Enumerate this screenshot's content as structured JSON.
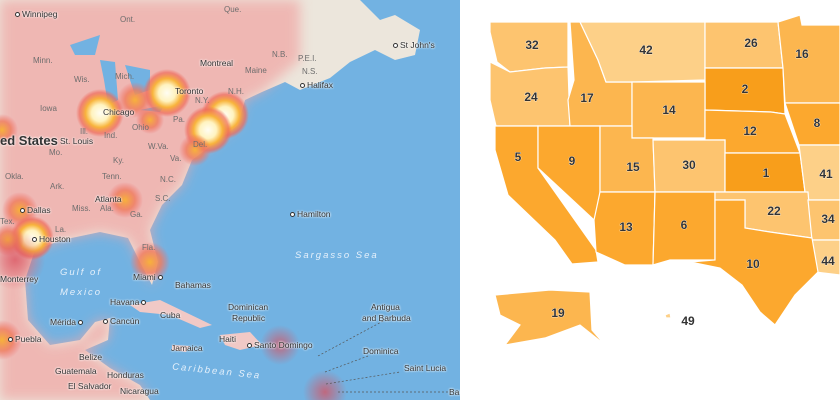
{
  "heatmap": {
    "cities": {
      "winnipeg": "Winnipeg",
      "montreal": "Montreal",
      "toronto": "Toronto",
      "chicago": "Chicago",
      "st_louis": "St. Louis",
      "halifax": "Halifax",
      "st_johns": "St John's",
      "atlanta": "Atlanta",
      "dallas": "Dallas",
      "houston": "Houston",
      "miami": "Miami",
      "hamilton": "Hamilton",
      "monterrey": "Monterrey",
      "havana": "Havana",
      "cancun": "Cancún",
      "merida": "Mérida",
      "puebla": "Puebla",
      "santo_domingo": "Santo Domingo"
    },
    "regions": {
      "que": "Que.",
      "ont": "Ont.",
      "minn": "Minn.",
      "wis": "Wis.",
      "mich": "Mich.",
      "iowa": "Iowa",
      "ill": "Ill.",
      "ind": "Ind.",
      "ohio": "Ohio",
      "pa": "Pa.",
      "ny": "N.Y.",
      "nh": "N.H.",
      "maine": "Maine",
      "nb": "N.B.",
      "pei": "P.E.I.",
      "ns": "N.S.",
      "mo": "Mo.",
      "ky": "Ky.",
      "wva": "W.Va.",
      "va": "Va.",
      "tenn": "Tenn.",
      "nc": "N.C.",
      "okla": "Okla.",
      "ark": "Ark.",
      "miss": "Miss.",
      "ala": "Ala.",
      "ga": "Ga.",
      "la": "La.",
      "fla": "Fla.",
      "sc": "S.C.",
      "del": "Del.",
      "tex": "Tex."
    },
    "countries": {
      "us": "ed States",
      "bahamas": "Bahamas",
      "cuba": "Cuba",
      "dominican_republic_1": "Dominican",
      "dominican_republic_2": "Republic",
      "haiti": "Haiti",
      "jamaica": "Jamaica",
      "belize": "Belize",
      "guatemala": "Guatemala",
      "honduras": "Honduras",
      "el_salvador": "El Salvador",
      "nicaragua": "Nicaragua",
      "antigua_1": "Antigua",
      "antigua_2": "and Barbuda",
      "dominica": "Dominica",
      "saint_lucia": "Saint Lucia",
      "barbados": "Bar"
    },
    "seas": {
      "gulf_1": "Gulf of",
      "gulf_2": "Mexico",
      "sargasso": "Sargasso Sea",
      "caribbean": "Caribbean Sea"
    },
    "colors": {
      "ocean": "#72b2e2",
      "land": "#ece6dc",
      "heat_low": "#f2a0a0",
      "heat_mid": "#f7b23b",
      "heat_high": "#fffbe8"
    }
  },
  "choropleth": {
    "color_scale": {
      "1-4": "#f89e1b",
      "5-13": "#fca82e",
      "14-19": "#fcb64f",
      "20-34": "#fdc46f",
      "35-50": "#fdd088"
    },
    "states": {
      "WA": 32,
      "MT": 42,
      "ND": 26,
      "MN": 16,
      "OR": 24,
      "ID": 17,
      "SD": 2,
      "WY": 14,
      "IA": 8,
      "NE": 12,
      "CA": 5,
      "NV": 9,
      "UT": 15,
      "CO": 30,
      "KS": 1,
      "MO": 41,
      "AZ": 13,
      "NM": 6,
      "OK": 22,
      "AR": 34,
      "LA": 44,
      "TX": 10,
      "AK": 19,
      "HI": 49
    }
  }
}
